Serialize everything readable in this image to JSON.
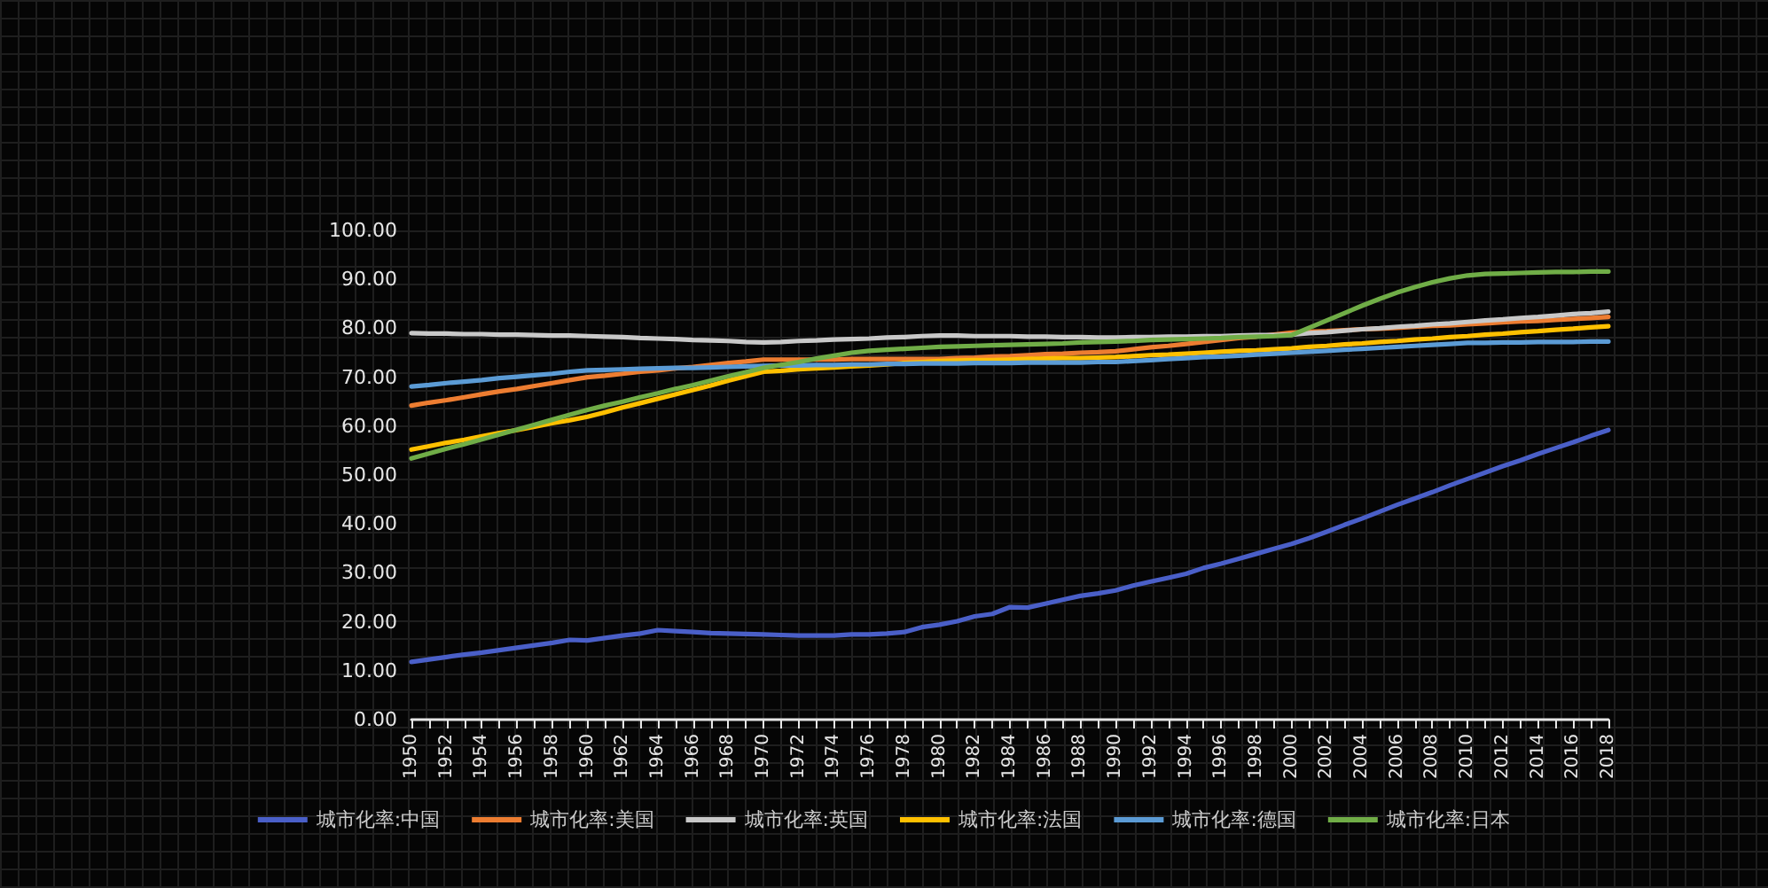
{
  "chart_data": {
    "type": "line",
    "categories": [
      "1950",
      null,
      "1952",
      null,
      "1954",
      null,
      "1956",
      null,
      "1958",
      null,
      "1960",
      null,
      "1962",
      null,
      "1964",
      null,
      "1966",
      null,
      "1968",
      null,
      "1970",
      null,
      "1972",
      null,
      "1974",
      null,
      "1976",
      null,
      "1978",
      null,
      "1980",
      null,
      "1982",
      null,
      "1984",
      null,
      "1986",
      null,
      "1988",
      null,
      "1990",
      null,
      "1992",
      null,
      "1994",
      null,
      "1996",
      null,
      "1998",
      null,
      "2000",
      null,
      "2002",
      null,
      "2004",
      null,
      "2006",
      null,
      "2008",
      null,
      "2010",
      null,
      "2012",
      null,
      "2014",
      null,
      "2016",
      null,
      "2018"
    ],
    "series": [
      {
        "name": "城市化率:中国",
        "color": "#4a5fc8",
        "values": [
          11.8,
          12.3,
          12.8,
          13.3,
          13.7,
          14.2,
          14.7,
          15.2,
          15.7,
          16.3,
          16.2,
          16.7,
          17.2,
          17.6,
          18.3,
          18.1,
          17.9,
          17.7,
          17.6,
          17.5,
          17.4,
          17.3,
          17.2,
          17.2,
          17.2,
          17.4,
          17.4,
          17.6,
          17.9,
          18.9,
          19.4,
          20.1,
          21.1,
          21.6,
          23.0,
          22.9,
          23.7,
          24.5,
          25.3,
          25.8,
          26.4,
          27.4,
          28.2,
          29.0,
          29.8,
          31.0,
          31.9,
          32.9,
          33.9,
          34.9,
          35.9,
          37.1,
          38.4,
          39.8,
          41.1,
          42.5,
          43.9,
          45.2,
          46.5,
          47.9,
          49.2,
          50.5,
          51.8,
          53.0,
          54.3,
          55.5,
          56.7,
          58.0,
          59.2
        ]
      },
      {
        "name": "城市化率:美国",
        "color": "#ed7d31",
        "values": [
          64.2,
          64.8,
          65.3,
          65.9,
          66.5,
          67.1,
          67.6,
          68.2,
          68.8,
          69.4,
          70.0,
          70.3,
          70.7,
          71.1,
          71.4,
          71.8,
          72.1,
          72.5,
          72.9,
          73.2,
          73.6,
          73.6,
          73.6,
          73.6,
          73.6,
          73.7,
          73.7,
          73.7,
          73.7,
          73.7,
          73.7,
          73.9,
          74.0,
          74.2,
          74.3,
          74.5,
          74.7,
          74.8,
          75.0,
          75.1,
          75.3,
          75.7,
          76.1,
          76.4,
          76.8,
          77.2,
          77.6,
          78.0,
          78.3,
          78.7,
          79.1,
          79.3,
          79.4,
          79.6,
          79.8,
          79.9,
          80.1,
          80.3,
          80.5,
          80.6,
          80.8,
          81.0,
          81.2,
          81.4,
          81.5,
          81.7,
          81.9,
          82.1,
          82.3
        ]
      },
      {
        "name": "城市化率:英国",
        "color": "#c8c8c8",
        "values": [
          79.0,
          78.9,
          78.9,
          78.8,
          78.8,
          78.7,
          78.7,
          78.6,
          78.5,
          78.5,
          78.4,
          78.3,
          78.2,
          78.0,
          77.9,
          77.8,
          77.6,
          77.5,
          77.4,
          77.2,
          77.1,
          77.2,
          77.4,
          77.5,
          77.7,
          77.8,
          77.9,
          78.1,
          78.2,
          78.4,
          78.5,
          78.5,
          78.4,
          78.4,
          78.4,
          78.3,
          78.3,
          78.2,
          78.2,
          78.1,
          78.1,
          78.2,
          78.2,
          78.3,
          78.3,
          78.4,
          78.4,
          78.5,
          78.6,
          78.6,
          78.7,
          79.0,
          79.2,
          79.5,
          79.8,
          80.0,
          80.3,
          80.5,
          80.8,
          81.0,
          81.3,
          81.6,
          81.8,
          82.1,
          82.3,
          82.6,
          82.9,
          83.1,
          83.4
        ]
      },
      {
        "name": "城市化率:法国",
        "color": "#ffc000",
        "values": [
          55.2,
          55.9,
          56.6,
          57.2,
          57.9,
          58.6,
          59.2,
          59.9,
          60.6,
          61.2,
          61.9,
          62.8,
          63.8,
          64.7,
          65.6,
          66.5,
          67.4,
          68.3,
          69.3,
          70.2,
          71.1,
          71.3,
          71.6,
          71.8,
          72.0,
          72.2,
          72.4,
          72.6,
          72.9,
          73.1,
          73.3,
          73.4,
          73.5,
          73.5,
          73.6,
          73.7,
          73.8,
          73.9,
          73.9,
          74.0,
          74.1,
          74.3,
          74.5,
          74.6,
          74.8,
          75.0,
          75.2,
          75.4,
          75.5,
          75.7,
          75.9,
          76.2,
          76.4,
          76.7,
          76.9,
          77.2,
          77.4,
          77.7,
          77.9,
          78.2,
          78.4,
          78.7,
          78.9,
          79.2,
          79.4,
          79.7,
          79.9,
          80.2,
          80.4
        ]
      },
      {
        "name": "城市化率:德国",
        "color": "#5b9bd5",
        "values": [
          68.1,
          68.4,
          68.8,
          69.1,
          69.4,
          69.8,
          70.1,
          70.4,
          70.7,
          71.1,
          71.4,
          71.5,
          71.6,
          71.7,
          71.8,
          71.9,
          71.9,
          72.0,
          72.1,
          72.2,
          72.3,
          72.4,
          72.4,
          72.5,
          72.5,
          72.6,
          72.6,
          72.7,
          72.7,
          72.8,
          72.8,
          72.8,
          72.9,
          72.9,
          72.9,
          73.0,
          73.0,
          73.0,
          73.0,
          73.1,
          73.1,
          73.3,
          73.5,
          73.7,
          73.9,
          74.1,
          74.2,
          74.4,
          74.6,
          74.8,
          75.0,
          75.2,
          75.4,
          75.6,
          75.8,
          76.0,
          76.2,
          76.4,
          76.6,
          76.8,
          77.0,
          77.0,
          77.1,
          77.1,
          77.2,
          77.2,
          77.2,
          77.3,
          77.3
        ]
      },
      {
        "name": "城市化率:日本",
        "color": "#70ad47",
        "values": [
          53.4,
          54.4,
          55.4,
          56.3,
          57.3,
          58.3,
          59.3,
          60.3,
          61.3,
          62.3,
          63.3,
          64.2,
          65.0,
          65.9,
          66.7,
          67.6,
          68.4,
          69.3,
          70.2,
          71.0,
          71.9,
          72.5,
          73.1,
          73.8,
          74.4,
          75.0,
          75.4,
          75.6,
          75.8,
          76.0,
          76.2,
          76.3,
          76.4,
          76.5,
          76.6,
          76.7,
          76.8,
          76.9,
          77.1,
          77.2,
          77.3,
          77.4,
          77.6,
          77.7,
          77.8,
          77.9,
          78.0,
          78.2,
          78.3,
          78.4,
          78.6,
          80.1,
          81.6,
          83.1,
          84.6,
          86.0,
          87.3,
          88.4,
          89.4,
          90.2,
          90.8,
          91.1,
          91.2,
          91.3,
          91.4,
          91.5,
          91.5,
          91.6,
          91.6
        ]
      }
    ],
    "ylim": [
      0,
      100
    ],
    "yticks": [
      {
        "value": 0,
        "label": "0.00"
      },
      {
        "value": 10,
        "label": "10.00"
      },
      {
        "value": 20,
        "label": "20.00"
      },
      {
        "value": 30,
        "label": "30.00"
      },
      {
        "value": 40,
        "label": "40.00"
      },
      {
        "value": 50,
        "label": "50.00"
      },
      {
        "value": 60,
        "label": "60.00"
      },
      {
        "value": 70,
        "label": "70.00"
      },
      {
        "value": 80,
        "label": "80.00"
      },
      {
        "value": 90,
        "label": "90.00"
      },
      {
        "value": 100,
        "label": "100.00"
      }
    ],
    "grid": false,
    "legend": "bottom",
    "marker": "none",
    "line_style": "solid"
  }
}
